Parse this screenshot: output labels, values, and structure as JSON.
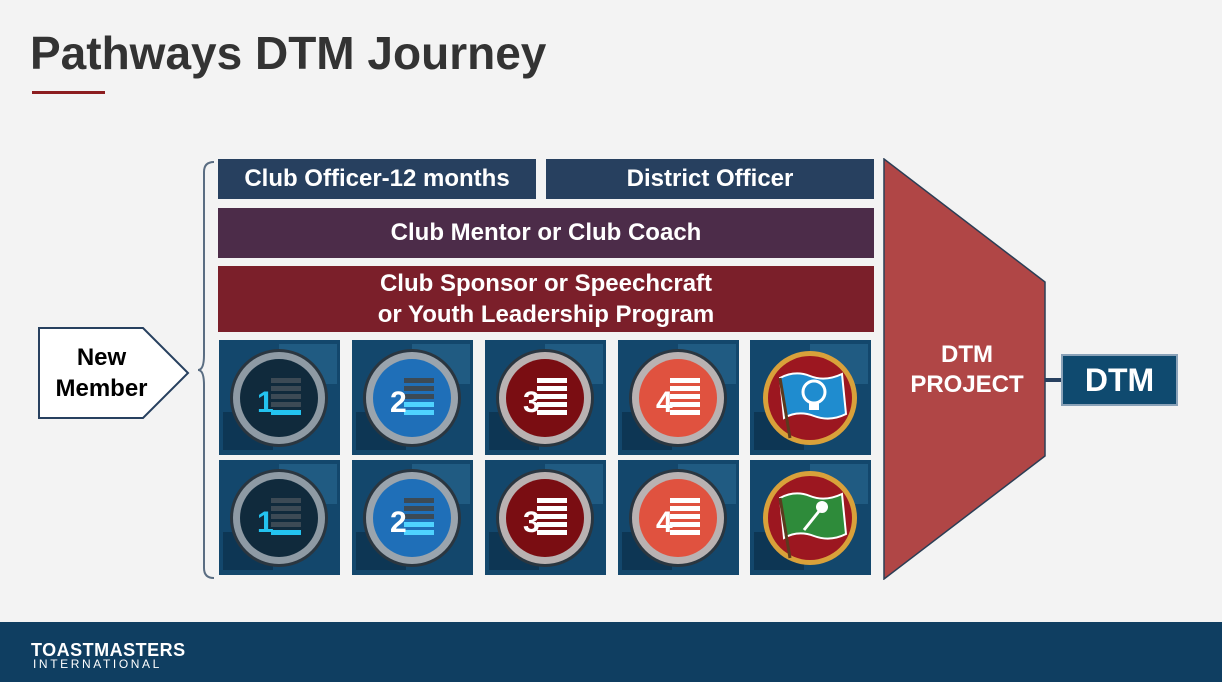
{
  "title": "Pathways DTM Journey",
  "bars": {
    "club_officer": "Club Officer-12 months",
    "district_officer": "District Officer",
    "mentor_coach": "Club Mentor or Club Coach",
    "sponsor_line1": "Club Sponsor or Speechcraft",
    "sponsor_line2": "or Youth Leadership Program"
  },
  "new_member": {
    "line1": "New",
    "line2": "Member"
  },
  "levels": [
    {
      "row": 1,
      "tiles": [
        {
          "label": "1",
          "style": "blue-dark"
        },
        {
          "label": "2",
          "style": "blue"
        },
        {
          "label": "3",
          "style": "red-dark"
        },
        {
          "label": "4",
          "style": "red"
        },
        {
          "label": "",
          "style": "flag-blue",
          "icon": "lightbulb-flag-icon"
        }
      ]
    },
    {
      "row": 2,
      "tiles": [
        {
          "label": "1",
          "style": "blue-dark"
        },
        {
          "label": "2",
          "style": "blue"
        },
        {
          "label": "3",
          "style": "red-dark"
        },
        {
          "label": "4",
          "style": "red"
        },
        {
          "label": "",
          "style": "flag-green",
          "icon": "microphone-flag-icon"
        }
      ]
    }
  ],
  "dtm_project": {
    "line1": "DTM",
    "line2": "PROJECT"
  },
  "dtm": "DTM",
  "footer": {
    "logo_line1": "TOASTMASTERS",
    "logo_line2": "INTERNATIONAL"
  },
  "colors": {
    "navy": "#27405f",
    "plum": "#4c2c49",
    "maroon": "#7b1f2a",
    "funnel": "#b04646",
    "footer": "#0f3e61",
    "accent_rule": "#8c1d1f"
  }
}
